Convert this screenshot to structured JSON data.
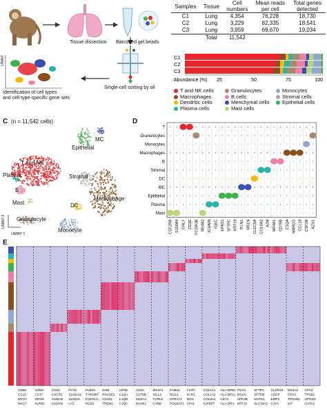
{
  "panel_a": {
    "steps": [
      "Tissue dissection",
      "Barcoded gel beads",
      "Single-cell sorting by oil",
      "Identification of cell types and cell type-specific gene sets"
    ],
    "identification_lines": [
      "Identification of cell types",
      "and cell type-specific gene sets"
    ],
    "umap_label": "UMAP"
  },
  "sample_table": {
    "headers": [
      "Samples",
      "Tissue",
      "Cell numbers",
      "Mean reads per cell",
      "Total genes detected"
    ],
    "header_lines": [
      [
        "Samples"
      ],
      [
        "Tissue"
      ],
      [
        "Cell",
        "numbers"
      ],
      [
        "Mean reads",
        "per cell"
      ],
      [
        "Total genes",
        "detected"
      ]
    ],
    "rows": [
      [
        "C1",
        "Lung",
        "4,354",
        "76,228",
        "18,730"
      ],
      [
        "C2",
        "Lung",
        "3,229",
        "82,335",
        "18,541"
      ],
      [
        "C3",
        "Lung",
        "3,959",
        "69,670",
        "19,034"
      ]
    ],
    "total_label": "Total",
    "total_value": "11,542"
  },
  "chart_data": [
    {
      "type": "bar",
      "orientation": "horizontal-stacked",
      "categories": [
        "C1",
        "C2",
        "C3"
      ],
      "xlabel": "Abundance (%)",
      "xticks": [
        "25",
        "50",
        "75",
        "100"
      ],
      "xlim": [
        0,
        100
      ],
      "series": [
        {
          "name": "T and NK cells",
          "color": "#e8252a",
          "values": [
            69,
            66,
            64
          ]
        },
        {
          "name": "Macrophages",
          "color": "#8a4f1d",
          "values": [
            4,
            3,
            5
          ]
        },
        {
          "name": "Dendritic cells",
          "color": "#f5b800",
          "values": [
            2,
            3,
            2
          ]
        },
        {
          "name": "Plasma cells",
          "color": "#2ab5a8",
          "values": [
            3,
            4,
            3
          ]
        },
        {
          "name": "Granulocytes",
          "color": "#a9896a",
          "values": [
            5,
            5,
            6
          ]
        },
        {
          "name": "B cells",
          "color": "#f07fa6",
          "values": [
            5,
            6,
            5
          ]
        },
        {
          "name": "Menchymal cells",
          "color": "#3a4fb3",
          "values": [
            2,
            2,
            3
          ]
        },
        {
          "name": "Mast cells",
          "color": "#b8d67a",
          "values": [
            3,
            4,
            4
          ]
        },
        {
          "name": "Monocytes",
          "color": "#8fa8d8",
          "values": [
            5,
            5,
            6
          ]
        },
        {
          "name": "Stromal cells",
          "color": "#a6a6a6",
          "values": [
            1,
            1,
            1
          ]
        },
        {
          "name": "Epithelial cells",
          "color": "#3bb34a",
          "values": [
            1,
            1,
            1
          ]
        }
      ]
    },
    {
      "type": "scatter",
      "title": "(n = 11,542 cells)",
      "xlabel": "UMAP 1",
      "ylabel": "UMAP 2",
      "clusters": [
        "T and NK",
        "B",
        "Plasma",
        "Mast",
        "Epithelial",
        "MC",
        "Stromal",
        "Macrophage",
        "DC",
        "Granulocyte",
        "Monocyte"
      ]
    },
    {
      "type": "violin",
      "rows": [
        "T",
        "Granulocytes",
        "Monocytes",
        "Macrophages",
        "B",
        "Stromal",
        "DC",
        "MC",
        "Epithelial",
        "Plasma",
        "Mast"
      ],
      "genes": [
        "CSF2RB",
        "S100A4",
        "GNLY",
        "CD3E",
        "FCGR3B",
        "MS4A2",
        "JCHAIN",
        "IGKC",
        "EPAS1",
        "SFTPC",
        "KRT19",
        "ITLN1",
        "MSLN",
        "CLEC9A",
        "COL6A2",
        "A2M",
        "MS4A1",
        "CD79B",
        "C1QA",
        "MARCO",
        "CCL18",
        "CSF1R",
        "AZU1"
      ]
    },
    {
      "type": "heatmap",
      "column_blocks": [
        [
          "CD69",
          "CCL5",
          "MYO7",
          "NKG7"
        ],
        [
          "GZMA",
          "CST7",
          "SRGN",
          "KLRB1"
        ],
        [
          "CD24",
          "CXCR2",
          "S100A8",
          "S100A9"
        ],
        [
          "FCN1",
          "S100A12",
          "S100A8",
          "LYZ"
        ],
        [
          "PLBD1",
          "TYROBP",
          "FCER1G",
          "RGS2"
        ],
        [
          "ILRB",
          "RNASE1",
          "CD163",
          "TREM2"
        ],
        [
          "APOE",
          "C1QA",
          "C1QB",
          "C1QC"
        ],
        [
          "CD22",
          "CD79B",
          "MS4A1",
          "BANK1"
        ],
        [
          "MS4A1",
          "IGLL5",
          "FCRL5",
          "CYBB"
        ],
        [
          "FAM24",
          "RGS1",
          "GPR171",
          "POU2AF1"
        ],
        [
          "CCR7",
          "XCR1",
          "IDO1",
          "CPVL"
        ],
        [
          "COL1A1",
          "COL1A2",
          "COL3A1",
          "IGFBP7"
        ],
        [
          "HLA-DPB1",
          "HLA-DPA1",
          "CD74",
          "HLA-DRA"
        ],
        [
          "ITLN1",
          "MSLN",
          "UPK3B",
          "KRT19"
        ],
        [
          "SFTPC",
          "SFTPB",
          "NAPSA",
          "SLC34A2"
        ],
        [
          "CLDN18",
          "AGER",
          "EMP2",
          "CAV1"
        ],
        [
          "MS4A2",
          "CPA3",
          "TPSAB1",
          "KIT"
        ],
        [
          "CPA3",
          "TPSB2",
          "HPGDS",
          "GATA2"
        ]
      ]
    }
  ],
  "panel_letters": [
    "C",
    "D",
    "E"
  ],
  "panel_c_labels": [
    "T and NK",
    "B",
    "Plasma",
    "Mast",
    "Epithelial",
    "MC",
    "Stromal",
    "Macrophage",
    "DC",
    "Granulocyte",
    "Monocyte"
  ]
}
